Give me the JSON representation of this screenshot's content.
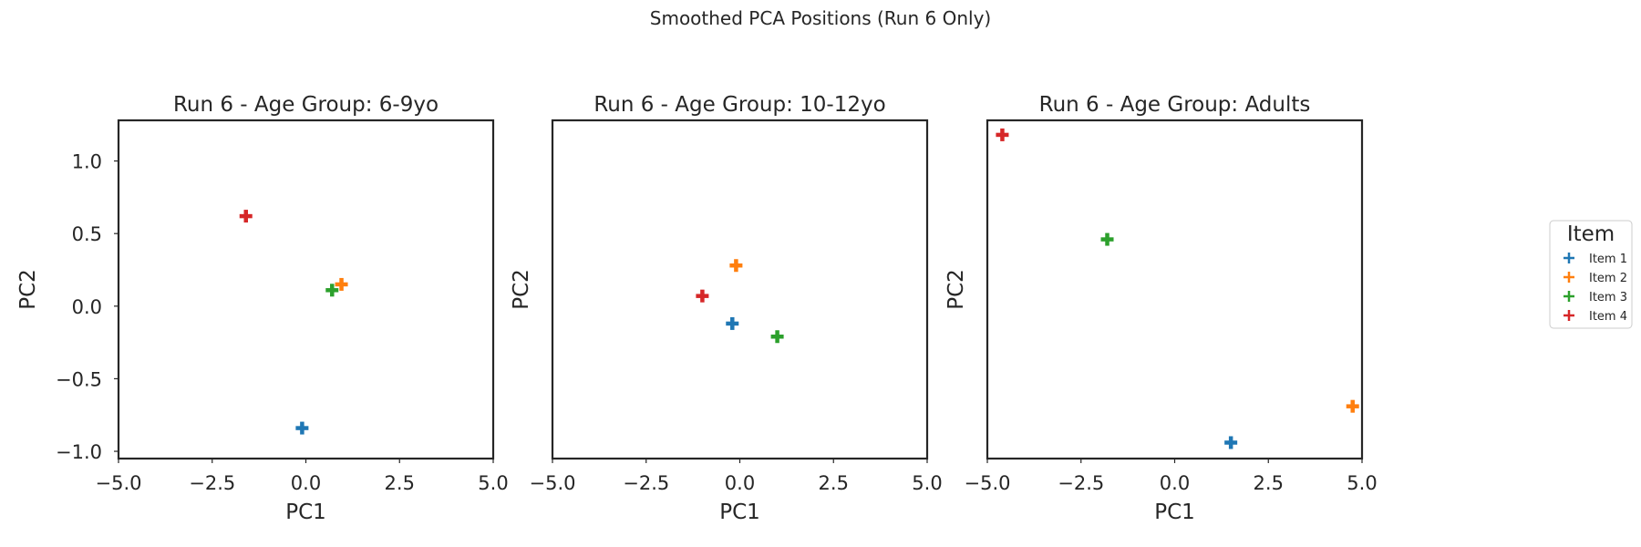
{
  "suptitle": "Smoothed PCA Positions (Run 6 Only)",
  "legend": {
    "title": "Item",
    "placement": "right",
    "items": [
      {
        "label": "Item 1",
        "color": "#1f77b4"
      },
      {
        "label": "Item 2",
        "color": "#ff7f0e"
      },
      {
        "label": "Item 3",
        "color": "#2ca02c"
      },
      {
        "label": "Item 4",
        "color": "#d62728"
      }
    ]
  },
  "chart_data": [
    {
      "type": "scatter",
      "title": "Run 6 - Age Group: 6-9yo",
      "xlabel": "PC1",
      "ylabel": "PC2",
      "xlim": [
        -5,
        5
      ],
      "ylim": [
        -1.05,
        1.28
      ],
      "xticks": [
        "−5.0",
        "−2.5",
        "0.0",
        "2.5",
        "5.0"
      ],
      "xtick_values": [
        -5,
        -2.5,
        0,
        2.5,
        5
      ],
      "yticks": [
        "−1.0",
        "−0.5",
        "0.0",
        "0.5",
        "1.0"
      ],
      "ytick_values": [
        -1,
        -0.5,
        0,
        0.5,
        1
      ],
      "grid": false,
      "marker": "plus",
      "series": [
        {
          "name": "Item 1",
          "color": "#1f77b4",
          "points": [
            {
              "x": -0.1,
              "y": -0.84
            }
          ]
        },
        {
          "name": "Item 2",
          "color": "#ff7f0e",
          "points": [
            {
              "x": 0.95,
              "y": 0.15
            }
          ]
        },
        {
          "name": "Item 3",
          "color": "#2ca02c",
          "points": [
            {
              "x": 0.7,
              "y": 0.11
            }
          ]
        },
        {
          "name": "Item 4",
          "color": "#d62728",
          "points": [
            {
              "x": -1.6,
              "y": 0.62
            }
          ]
        }
      ]
    },
    {
      "type": "scatter",
      "title": "Run 6 - Age Group: 10-12yo",
      "xlabel": "PC1",
      "ylabel": "PC2",
      "xlim": [
        -5,
        5
      ],
      "ylim": [
        -1.05,
        1.28
      ],
      "xticks": [
        "−5.0",
        "−2.5",
        "0.0",
        "2.5",
        "5.0"
      ],
      "xtick_values": [
        -5,
        -2.5,
        0,
        2.5,
        5
      ],
      "yticks": [],
      "ytick_values": [],
      "grid": false,
      "marker": "plus",
      "series": [
        {
          "name": "Item 1",
          "color": "#1f77b4",
          "points": [
            {
              "x": -0.2,
              "y": -0.12
            }
          ]
        },
        {
          "name": "Item 2",
          "color": "#ff7f0e",
          "points": [
            {
              "x": -0.1,
              "y": 0.28
            }
          ]
        },
        {
          "name": "Item 3",
          "color": "#2ca02c",
          "points": [
            {
              "x": 1.0,
              "y": -0.21
            }
          ]
        },
        {
          "name": "Item 4",
          "color": "#d62728",
          "points": [
            {
              "x": -1.0,
              "y": 0.07
            }
          ]
        }
      ]
    },
    {
      "type": "scatter",
      "title": "Run 6 - Age Group: Adults",
      "xlabel": "PC1",
      "ylabel": "PC2",
      "xlim": [
        -5,
        5
      ],
      "ylim": [
        -1.05,
        1.28
      ],
      "xticks": [
        "−5.0",
        "−2.5",
        "0.0",
        "2.5",
        "5.0"
      ],
      "xtick_values": [
        -5,
        -2.5,
        0,
        2.5,
        5
      ],
      "yticks": [],
      "ytick_values": [],
      "grid": false,
      "marker": "plus",
      "series": [
        {
          "name": "Item 1",
          "color": "#1f77b4",
          "points": [
            {
              "x": 1.5,
              "y": -0.94
            }
          ]
        },
        {
          "name": "Item 2",
          "color": "#ff7f0e",
          "points": [
            {
              "x": 4.75,
              "y": -0.69
            }
          ]
        },
        {
          "name": "Item 3",
          "color": "#2ca02c",
          "points": [
            {
              "x": -1.8,
              "y": 0.46
            }
          ]
        },
        {
          "name": "Item 4",
          "color": "#d62728",
          "points": [
            {
              "x": -4.6,
              "y": 1.18
            }
          ]
        }
      ]
    }
  ]
}
